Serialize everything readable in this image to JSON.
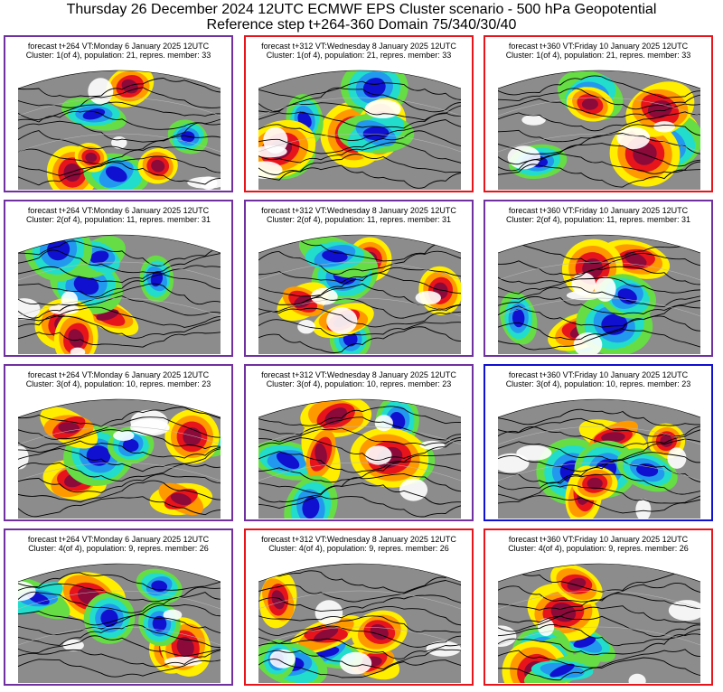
{
  "header": {
    "line1": "Thursday 26 December 2024 12UTC ECMWF EPS Cluster scenario - 500 hPa Geopotential",
    "line2": "Reference step t+264-360 Domain 75/340/30/40"
  },
  "colors": {
    "purple": "#7030a0",
    "red": "#e8141c",
    "blue": "#1010d0"
  },
  "panels": [
    {
      "caption1": "forecast t+264 VT:Monday 6 January 2025 12UTC",
      "caption2": "Cluster: 1(of 4), population: 21, repres. member: 33",
      "frame": "purple"
    },
    {
      "caption1": "forecast t+312 VT:Wednesday 8 January 2025 12UTC",
      "caption2": "Cluster: 1(of 4), population: 21, repres. member: 33",
      "frame": "red"
    },
    {
      "caption1": "forecast t+360 VT:Friday 10 January 2025 12UTC",
      "caption2": "Cluster: 1(of 4), population: 21, repres. member: 33",
      "frame": "red"
    },
    {
      "caption1": "forecast t+264 VT:Monday 6 January 2025 12UTC",
      "caption2": "Cluster: 2(of 4), population: 11, repres. member: 31",
      "frame": "purple"
    },
    {
      "caption1": "forecast t+312 VT:Wednesday 8 January 2025 12UTC",
      "caption2": "Cluster: 2(of 4), population: 11, repres. member: 31",
      "frame": "purple"
    },
    {
      "caption1": "forecast t+360 VT:Friday 10 January 2025 12UTC",
      "caption2": "Cluster: 2(of 4), population: 11, repres. member: 31",
      "frame": "purple"
    },
    {
      "caption1": "forecast t+264 VT:Monday 6 January 2025 12UTC",
      "caption2": "Cluster: 3(of 4), population: 10, repres. member: 23",
      "frame": "purple"
    },
    {
      "caption1": "forecast t+312 VT:Wednesday 8 January 2025 12UTC",
      "caption2": "Cluster: 3(of 4), population: 10, repres. member: 23",
      "frame": "purple"
    },
    {
      "caption1": "forecast t+360 VT:Friday 10 January 2025 12UTC",
      "caption2": "Cluster: 3(of 4), population: 10, repres. member: 23",
      "frame": "blue"
    },
    {
      "caption1": "forecast t+264 VT:Monday 6 January 2025 12UTC",
      "caption2": "Cluster: 4(of 4), population: 9, repres. member: 26",
      "frame": "purple"
    },
    {
      "caption1": "forecast t+312 VT:Wednesday 8 January 2025 12UTC",
      "caption2": "Cluster: 4(of 4), population: 9, repres. member: 26",
      "frame": "red"
    },
    {
      "caption1": "forecast t+360 VT:Friday 10 January 2025 12UTC",
      "caption2": "Cluster: 4(of 4), population: 9, repres. member: 26",
      "frame": "red"
    }
  ]
}
